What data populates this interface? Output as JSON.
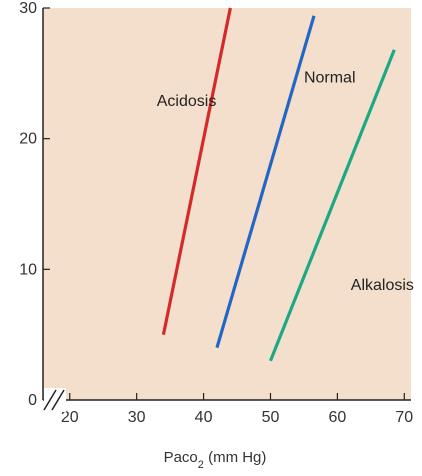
{
  "chart_data": {
    "type": "line",
    "title": "",
    "xlabel": "Paco2 (mm Hg)",
    "xlabel_main": "Paco",
    "xlabel_sub": "2",
    "xlabel_unit": " (mm Hg)",
    "ylabel": "",
    "xlim": [
      16,
      71
    ],
    "ylim": [
      0,
      30
    ],
    "axis_break": true,
    "x_ticks": [
      20,
      30,
      40,
      50,
      60,
      70
    ],
    "y_ticks": [
      0,
      10,
      20,
      30
    ],
    "x_tick_labels": [
      "20",
      "30",
      "40",
      "50",
      "60",
      "70"
    ],
    "y_tick_labels": [
      "0",
      "10",
      "20",
      "30"
    ],
    "grid": false,
    "legend": "none",
    "background_color": "#f3dfcc",
    "series": [
      {
        "name": "Acidosis",
        "color": "#d42a2a",
        "points": [
          [
            34,
            5
          ],
          [
            44,
            30
          ]
        ],
        "label_at": [
          33,
          22.5
        ]
      },
      {
        "name": "Normal",
        "color": "#2367c4",
        "points": [
          [
            42,
            4
          ],
          [
            56.5,
            29.4
          ]
        ],
        "label_at": [
          55,
          24.3
        ]
      },
      {
        "name": "Alkalosis",
        "color": "#1aa886",
        "points": [
          [
            50,
            3
          ],
          [
            68.5,
            26.8
          ]
        ],
        "label_at": [
          62,
          8.4
        ]
      }
    ]
  }
}
